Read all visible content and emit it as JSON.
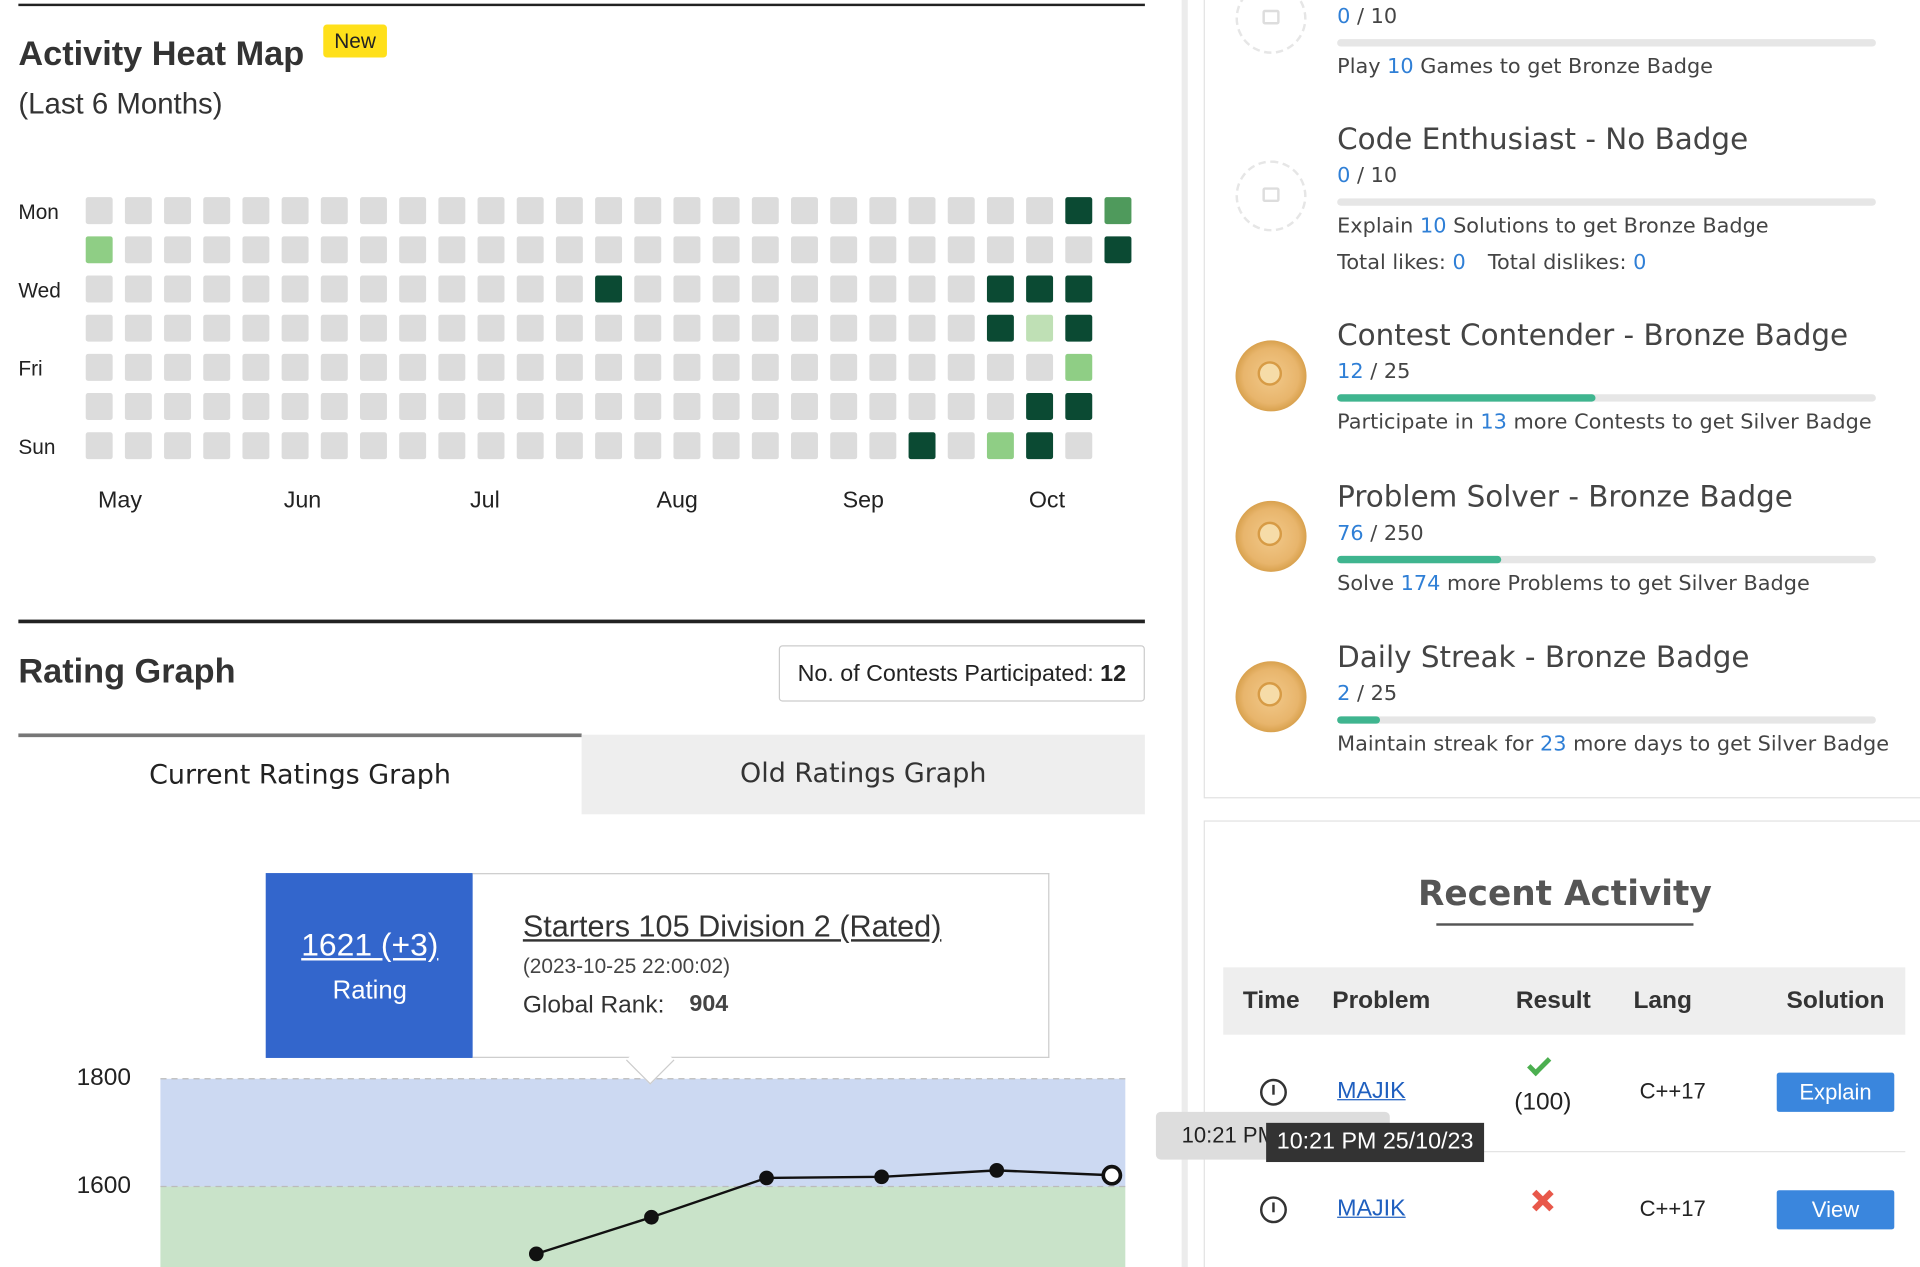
{
  "heatmap": {
    "title": "Activity Heat Map",
    "badge": "New",
    "subtitle": "(Last 6 Months)",
    "day_labels": [
      "Mon",
      "Wed",
      "Fri",
      "Sun"
    ],
    "months": [
      "May",
      "Jun",
      "Jul",
      "Aug",
      "Sep",
      "Oct"
    ],
    "colors": [
      "#dcdcdc",
      "#bfe0b5",
      "#8fce85",
      "#4f9a5c",
      "#0b4a33"
    ],
    "rows": [
      [
        0,
        0,
        0,
        0,
        0,
        0,
        0,
        0,
        0,
        0,
        0,
        0,
        0,
        0,
        0,
        0,
        0,
        0,
        0,
        0,
        0,
        0,
        0,
        0,
        0,
        4,
        3
      ],
      [
        2,
        0,
        0,
        0,
        0,
        0,
        0,
        0,
        0,
        0,
        0,
        0,
        0,
        0,
        0,
        0,
        0,
        0,
        0,
        0,
        0,
        0,
        0,
        0,
        0,
        0,
        4
      ],
      [
        0,
        0,
        0,
        0,
        0,
        0,
        0,
        0,
        0,
        0,
        0,
        0,
        0,
        4,
        0,
        0,
        0,
        0,
        0,
        0,
        0,
        0,
        0,
        4,
        4,
        4
      ],
      [
        0,
        0,
        0,
        0,
        0,
        0,
        0,
        0,
        0,
        0,
        0,
        0,
        0,
        0,
        0,
        0,
        0,
        0,
        0,
        0,
        0,
        0,
        0,
        4,
        1,
        4
      ],
      [
        0,
        0,
        0,
        0,
        0,
        0,
        0,
        0,
        0,
        0,
        0,
        0,
        0,
        0,
        0,
        0,
        0,
        0,
        0,
        0,
        0,
        0,
        0,
        0,
        0,
        2
      ],
      [
        0,
        0,
        0,
        0,
        0,
        0,
        0,
        0,
        0,
        0,
        0,
        0,
        0,
        0,
        0,
        0,
        0,
        0,
        0,
        0,
        0,
        0,
        0,
        0,
        4,
        4
      ],
      [
        0,
        0,
        0,
        0,
        0,
        0,
        0,
        0,
        0,
        0,
        0,
        0,
        0,
        0,
        0,
        0,
        0,
        0,
        0,
        0,
        0,
        4,
        0,
        2,
        4,
        0
      ]
    ]
  },
  "rating": {
    "title": "Rating Graph",
    "contests_label": "No. of Contests Participated:",
    "contests": 12,
    "tabs": [
      "Current Ratings Graph",
      "Old Ratings Graph"
    ],
    "tooltip": {
      "rating": "1621 (+3)",
      "rating_label": "Rating",
      "contest": "Starters 105 Division 2 (Rated)",
      "date": "(2023-10-25 22:00:02)",
      "rank_label": "Global Rank:",
      "rank": 904
    },
    "chart_data": {
      "type": "line",
      "values": [
        1475,
        1543,
        1616,
        1618,
        1630,
        1621
      ],
      "color": "#111111",
      "ylim": [
        1450,
        1800
      ],
      "yticks": [
        1600,
        1800
      ],
      "bands": [
        {
          "from": 1600,
          "to": 1800,
          "color": "#ccd9f2"
        },
        {
          "from": 1400,
          "to": 1600,
          "color": "#c9e3c9"
        }
      ]
    }
  },
  "badges": [
    {
      "progress": 0,
      "sep": "/",
      "total": 10,
      "desc": [
        "Play",
        "10",
        "Games to get Bronze Badge"
      ],
      "locked": true
    },
    {
      "title": "Code Enthusiast - No Badge",
      "progress": 0,
      "sep": "/",
      "total": 10,
      "desc": [
        "Explain",
        "10",
        "Solutions to get Bronze Badge"
      ],
      "likes_label": "Total likes:",
      "likes": 0,
      "dislikes_label": "Total dislikes:",
      "dislikes": 0,
      "locked": true
    },
    {
      "title": "Contest Contender - Bronze Badge",
      "progress": 12,
      "sep": "/",
      "total": 25,
      "desc": [
        "Participate in",
        "13",
        "more Contests to get Silver Badge"
      ],
      "locked": false
    },
    {
      "title": "Problem Solver - Bronze Badge",
      "progress": 76,
      "sep": "/",
      "total": 250,
      "desc": [
        "Solve",
        "174",
        "more Problems to get Silver Badge"
      ],
      "locked": false
    },
    {
      "title": "Daily Streak - Bronze Badge",
      "progress": 2,
      "sep": "/",
      "total": 25,
      "desc": [
        "Maintain streak for",
        "23",
        "more days to get Silver Badge"
      ],
      "locked": false
    }
  ],
  "recent_activity": {
    "title": "Recent Activity",
    "headers": [
      "Time",
      "Problem",
      "Result",
      "Lang",
      "Solution"
    ],
    "rows": [
      {
        "problem": "MAJIK",
        "status": "accepted",
        "result": "(100)",
        "lang": "C++17",
        "solution": "Explain"
      },
      {
        "problem": "MAJIK",
        "status": "wrong",
        "lang": "C++17",
        "solution": "View"
      }
    ]
  },
  "tooltips": [
    "10:21 PM",
    "10:21 PM 25/10/23"
  ]
}
